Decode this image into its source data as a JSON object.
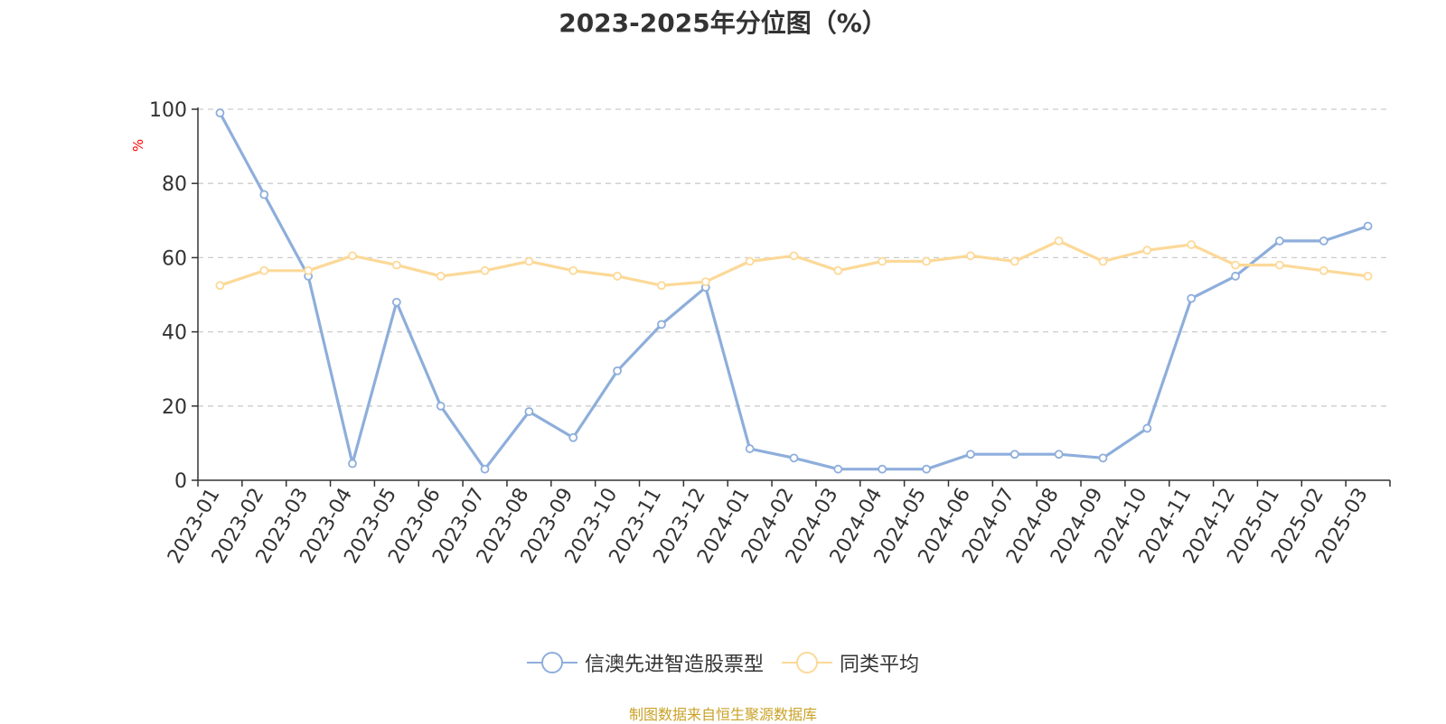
{
  "chart_data": {
    "type": "line",
    "title": "2023-2025年分位图（%）",
    "ylabel": "%",
    "xlabel": "",
    "ylim": [
      0,
      100
    ],
    "yticks": [
      0,
      20,
      40,
      60,
      80,
      100
    ],
    "grid": true,
    "legend_position": "bottom",
    "categories": [
      "2023-01",
      "2023-02",
      "2023-03",
      "2023-04",
      "2023-05",
      "2023-06",
      "2023-07",
      "2023-08",
      "2023-09",
      "2023-10",
      "2023-11",
      "2023-12",
      "2024-01",
      "2024-02",
      "2024-03",
      "2024-04",
      "2024-05",
      "2024-06",
      "2024-07",
      "2024-08",
      "2024-09",
      "2024-10",
      "2024-11",
      "2024-12",
      "2025-01",
      "2025-02",
      "2025-03"
    ],
    "series": [
      {
        "name": "信澳先进智造股票型",
        "color": "#8eaedb",
        "values": [
          99,
          77,
          55,
          4.5,
          48,
          20,
          3,
          18.5,
          11.5,
          29.5,
          42,
          52,
          8.5,
          6,
          3,
          3,
          3,
          7,
          7,
          7,
          6,
          14,
          49,
          55,
          64.5,
          64.5,
          68.5
        ]
      },
      {
        "name": "同类平均",
        "color": "#fcd998",
        "values": [
          52.5,
          56.5,
          56.5,
          60.5,
          58,
          55,
          56.5,
          59,
          56.5,
          55,
          52.5,
          53.5,
          59,
          60.5,
          56.5,
          59,
          59,
          60.5,
          59,
          64.5,
          59,
          62,
          63.5,
          58,
          58,
          56.5,
          55
        ]
      }
    ]
  },
  "source_note": "制图数据来自恒生聚源数据库",
  "colors": {
    "axis": "#333333",
    "grid": "#cccccc",
    "ylabel": "#ff0000",
    "source": "#c9a227"
  }
}
